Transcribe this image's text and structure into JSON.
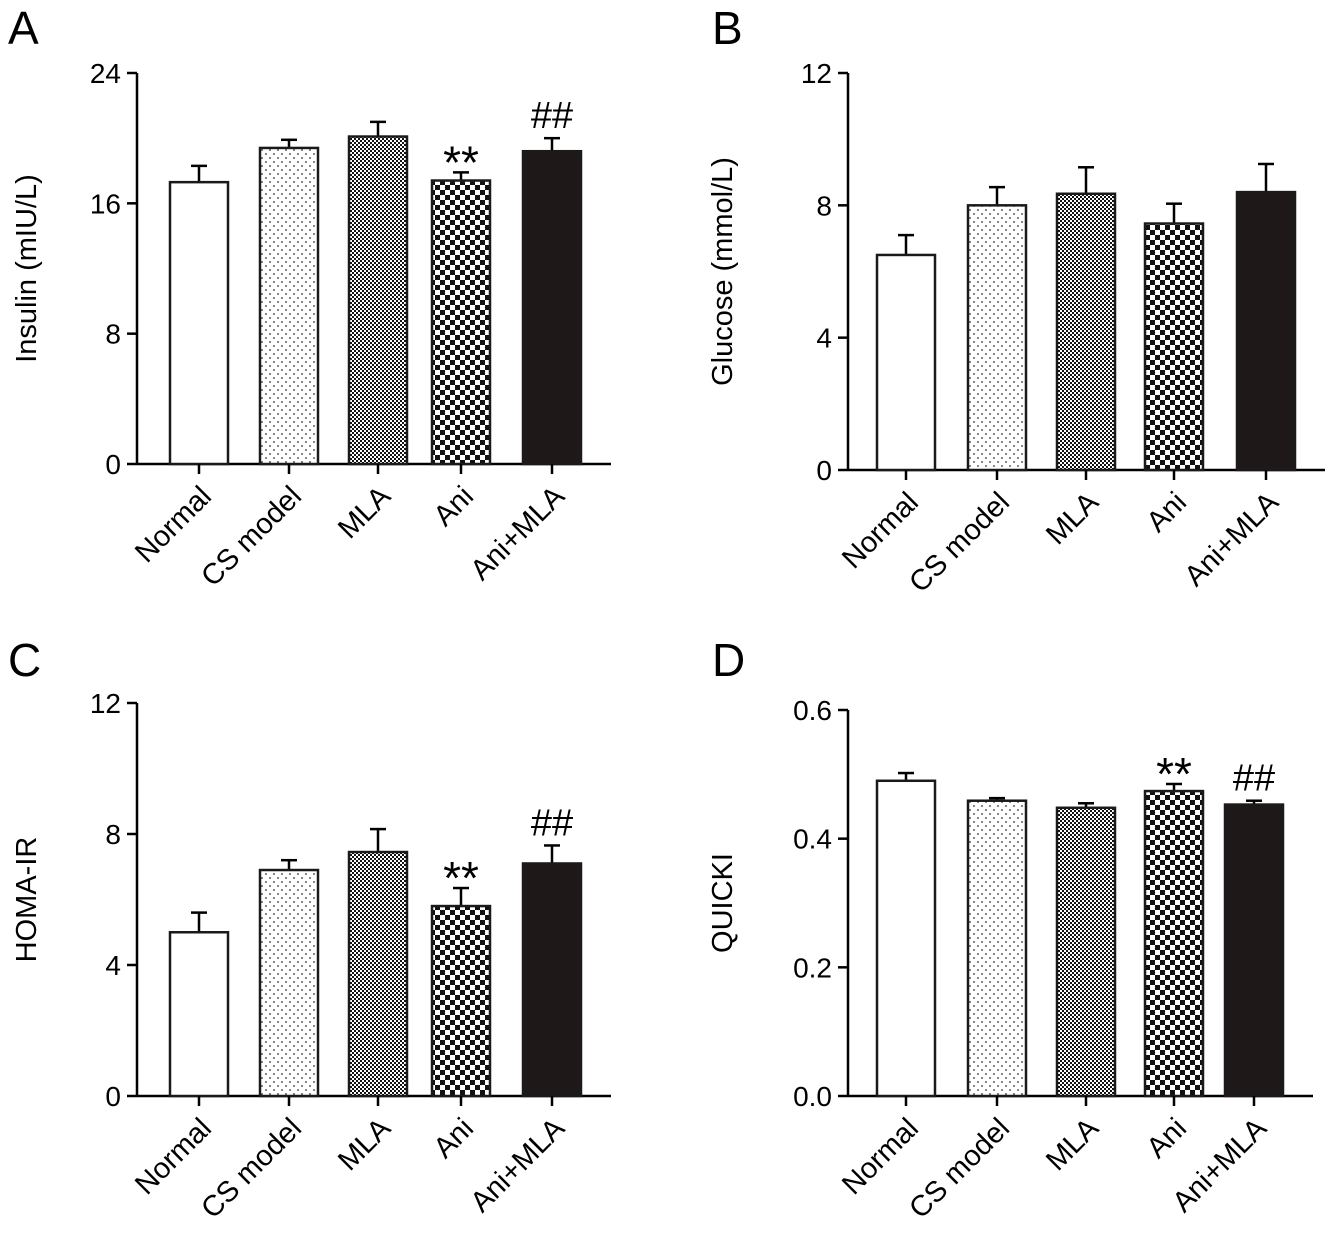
{
  "figure": {
    "colors": {
      "axis": "#000000",
      "bar_outline": "#1a1a1a",
      "solid_fill": "#1e1819",
      "background": "#ffffff"
    },
    "chart_data": [
      {
        "panel_label": "A",
        "type": "bar",
        "categories": [
          "Normal",
          "CS model",
          "MLA",
          "Ani",
          "Ani+MLA"
        ],
        "values": [
          17.3,
          19.4,
          20.1,
          17.4,
          19.2
        ],
        "errors": [
          1.0,
          0.5,
          0.9,
          0.5,
          0.8
        ],
        "annotations": [
          "",
          "",
          "",
          "**",
          "##"
        ],
        "ylabel": "Insulin (mIU/L)",
        "xlabel": "",
        "ylim": [
          0,
          24
        ],
        "yticks": [
          0,
          8,
          16,
          24
        ],
        "ytick_labels": [
          "0",
          "8",
          "16",
          "24"
        ]
      },
      {
        "panel_label": "B",
        "type": "bar",
        "categories": [
          "Normal",
          "CS model",
          "MLA",
          "Ani",
          "Ani+MLA"
        ],
        "values": [
          6.5,
          8.0,
          8.35,
          7.45,
          8.4
        ],
        "errors": [
          0.6,
          0.55,
          0.8,
          0.6,
          0.85
        ],
        "annotations": [
          "",
          "",
          "",
          "",
          ""
        ],
        "ylabel": "Glucose (mmol/L)",
        "xlabel": "",
        "ylim": [
          0,
          12
        ],
        "yticks": [
          0,
          4,
          8,
          12
        ],
        "ytick_labels": [
          "0",
          "4",
          "8",
          "12"
        ]
      },
      {
        "panel_label": "C",
        "type": "bar",
        "categories": [
          "Normal",
          "CS model",
          "MLA",
          "Ani",
          "Ani+MLA"
        ],
        "values": [
          5.0,
          6.9,
          7.45,
          5.8,
          7.1
        ],
        "errors": [
          0.6,
          0.3,
          0.7,
          0.55,
          0.55
        ],
        "annotations": [
          "",
          "",
          "",
          "**",
          "##"
        ],
        "ylabel": "HOMA-IR",
        "xlabel": "",
        "ylim": [
          0,
          12
        ],
        "yticks": [
          0,
          4,
          8,
          12
        ],
        "ytick_labels": [
          "0",
          "4",
          "8",
          "12"
        ]
      },
      {
        "panel_label": "D",
        "type": "bar",
        "categories": [
          "Normal",
          "CS model",
          "MLA",
          "Ani",
          "Ani+MLA"
        ],
        "values": [
          0.49,
          0.459,
          0.448,
          0.474,
          0.453
        ],
        "errors": [
          0.012,
          0.004,
          0.007,
          0.011,
          0.006
        ],
        "annotations": [
          "",
          "",
          "",
          "**",
          "##"
        ],
        "ylabel": "QUICKI",
        "xlabel": "",
        "ylim": [
          0,
          0.6
        ],
        "yticks": [
          0,
          0.2,
          0.4,
          0.6
        ],
        "ytick_labels": [
          "0.0",
          "0.2",
          "0.4",
          "0.6"
        ]
      }
    ]
  }
}
